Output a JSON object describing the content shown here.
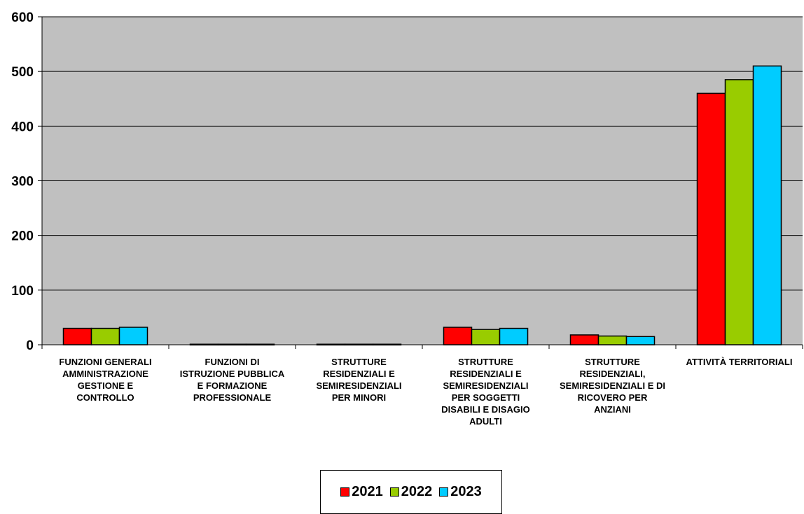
{
  "chart_data": {
    "type": "bar",
    "categories": [
      [
        "FUNZIONI GENERALI",
        "AMMINISTRAZIONE",
        "GESTIONE  E",
        "CONTROLLO"
      ],
      [
        "FUNZIONI DI",
        "ISTRUZIONE PUBBLICA",
        "E FORMAZIONE",
        "PROFESSIONALE"
      ],
      [
        "STRUTTURE",
        "RESIDENZIALI E",
        "SEMIRESIDENZIALI",
        "PER MINORI"
      ],
      [
        "STRUTTURE",
        "RESIDENZIALI E",
        "SEMIRESIDENZIALI",
        "PER SOGGETTI",
        "DISABILI E DISAGIO",
        "ADULTI"
      ],
      [
        "STRUTTURE",
        "RESIDENZIALI,",
        "SEMIRESIDENZIALI E DI",
        "RICOVERO PER",
        "ANZIANI"
      ],
      [
        "ATTIVITÀ TERRITORIALI"
      ]
    ],
    "series": [
      {
        "name": "2021",
        "color": "#ff0000",
        "values": [
          30,
          1,
          1,
          32,
          18,
          460
        ]
      },
      {
        "name": "2022",
        "color": "#99cc00",
        "values": [
          30,
          1,
          1,
          28,
          16,
          485
        ]
      },
      {
        "name": "2023",
        "color": "#00ccff",
        "values": [
          32,
          1,
          1,
          30,
          15,
          510
        ]
      }
    ],
    "ylim": [
      0,
      600
    ],
    "yticks": [
      0,
      100,
      200,
      300,
      400,
      500,
      600
    ],
    "grid": true,
    "legend_position": "bottom",
    "plot_background": "#c0c0c0"
  }
}
